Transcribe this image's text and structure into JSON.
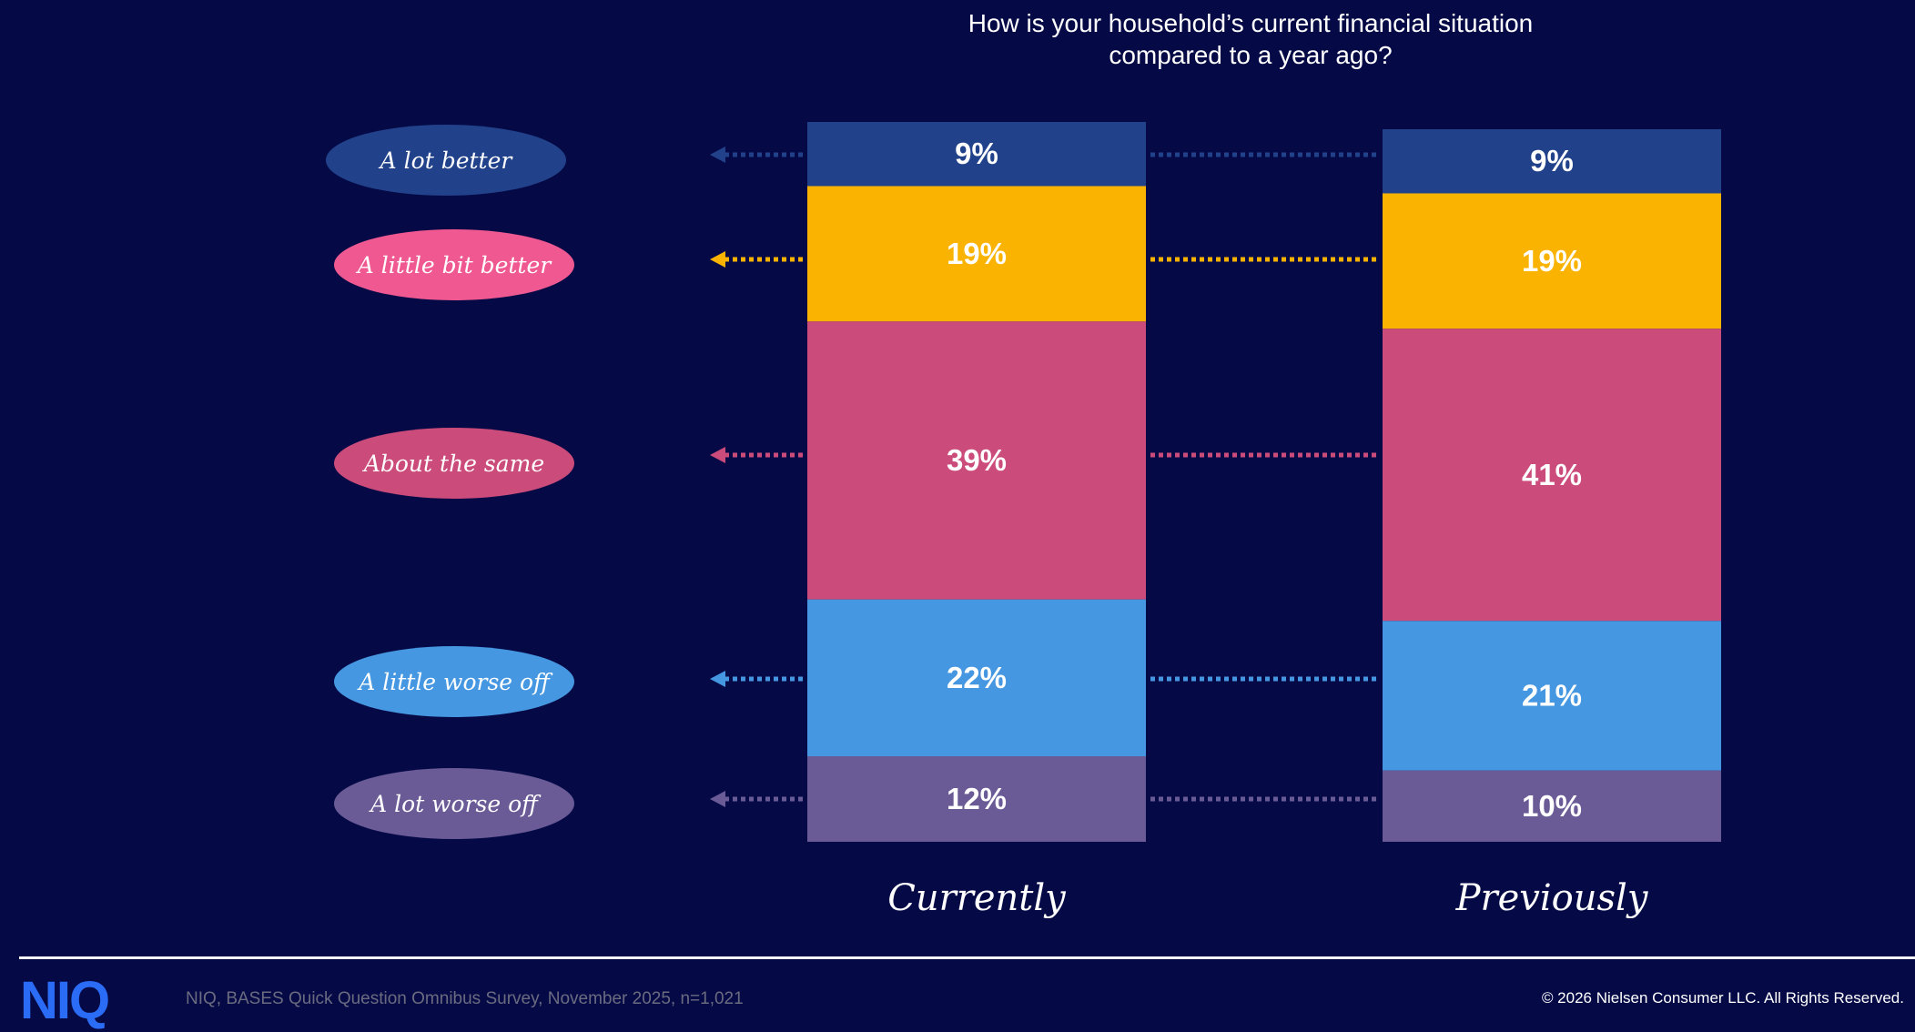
{
  "chart_data": {
    "type": "stacked-bar",
    "title": "How is your household’s current financial situation compared to a year ago?",
    "title_lines": [
      "How is your household’s current financial situation",
      "compared to a year ago?"
    ],
    "categories": [
      "Currently",
      "Previously"
    ],
    "series": [
      {
        "name": "A lot better",
        "color": "#21418a",
        "label_color": "#21418a",
        "values": [
          9,
          9
        ]
      },
      {
        "name": "A little bit better",
        "color": "#f9b300",
        "label_color": "#ef5890",
        "values": [
          19,
          19
        ]
      },
      {
        "name": "About the same",
        "color": "#cb4b7a",
        "label_color": "#cb4b7a",
        "values": [
          39,
          41
        ]
      },
      {
        "name": "A little worse off",
        "color": "#4697e1",
        "label_color": "#4697e1",
        "values": [
          22,
          21
        ]
      },
      {
        "name": "A lot worse off",
        "color": "#6a5b97",
        "label_color": "#6a5b97",
        "values": [
          12,
          10
        ]
      }
    ],
    "value_suffix": "%",
    "legend_placement": "left"
  },
  "footer": {
    "logo": "NIQ",
    "source": "NIQ, BASES Quick Question Omnibus Survey, November 2025, n=1,021",
    "copyright": "© 2026 Nielsen Consumer LLC. All Rights Reserved."
  }
}
